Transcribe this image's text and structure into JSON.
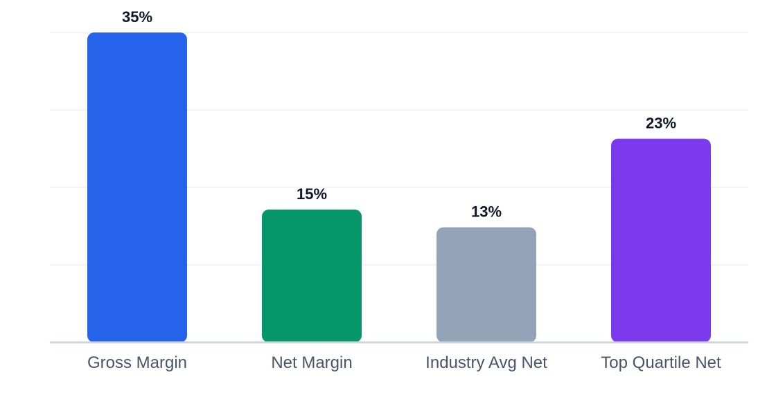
{
  "chart_data": {
    "type": "bar",
    "categories": [
      "Gross Margin",
      "Net Margin",
      "Industry Avg Net",
      "Top Quartile Net"
    ],
    "values": [
      35,
      15,
      13,
      23
    ],
    "value_labels": [
      "35%",
      "15%",
      "13%",
      "23%"
    ],
    "colors": [
      "#2563eb",
      "#059669",
      "#94a3b8",
      "#7c3aed"
    ],
    "ylim": [
      0,
      35
    ],
    "grid": true,
    "title": "",
    "xlabel": "",
    "ylabel": ""
  }
}
